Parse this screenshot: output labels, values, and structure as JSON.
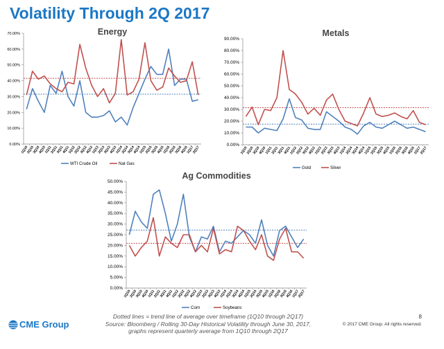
{
  "page": {
    "title": "Volatility Through 2Q 2017",
    "footer_lines": [
      "Dotted lines = trend line of average over timeframe (1Q10 through 2Q17)",
      "Source:  Bloomberg / Rolling 30-Day Historical Volatility through June 30, 2017,",
      "graphs represent quarterly average from 1Q10 through 2Q17"
    ],
    "page_number": "8",
    "copyright": "© 2017 CME Group. All rights reserved.",
    "logo_text": "CME Group",
    "colors": {
      "title": "#1b77c5",
      "blue": "#4f81bd",
      "red": "#c0504d"
    }
  },
  "chart_data": [
    {
      "id": "energy",
      "type": "line",
      "title": "Energy",
      "ylim": [
        0,
        70
      ],
      "yticks": [
        0,
        10,
        20,
        30,
        40,
        50,
        60,
        70
      ],
      "ytick_labels": [
        "0.00%",
        "10.00%",
        "20.00%",
        "30.00%",
        "40.00%",
        "50.00%",
        "60.00%",
        "70.00%"
      ],
      "categories": [
        "1Q10",
        "2Q10",
        "3Q10",
        "4Q10",
        "1Q11",
        "2Q11",
        "3Q11",
        "4Q11",
        "1Q12",
        "2Q12",
        "3Q12",
        "4Q12",
        "1Q13",
        "2Q13",
        "3Q13",
        "4Q13",
        "1Q14",
        "2Q14",
        "3Q14",
        "4Q14",
        "1Q15",
        "2Q15",
        "3Q15",
        "4Q15",
        "1Q16",
        "2Q16",
        "3Q16",
        "4Q16",
        "1Q17",
        "2Q17"
      ],
      "series": [
        {
          "name": "WTI Crude Oil",
          "color": "#4f81bd",
          "values": [
            22,
            35,
            27,
            20,
            37,
            32,
            46,
            30,
            24,
            40,
            20,
            17,
            17,
            18,
            21,
            14,
            17,
            12,
            23,
            32,
            41,
            49,
            44,
            44,
            60,
            37,
            41,
            41,
            27,
            28
          ],
          "trend": 31.5
        },
        {
          "name": "Nat Gas",
          "color": "#c0504d",
          "values": [
            31,
            46,
            41,
            43,
            38,
            35,
            33,
            39,
            38,
            63,
            48,
            37,
            30,
            35,
            26,
            32,
            66,
            31,
            33,
            41,
            64,
            40,
            34,
            36,
            48,
            43,
            39,
            40,
            52,
            31
          ],
          "trend": 41.5
        }
      ]
    },
    {
      "id": "metals",
      "type": "line",
      "title": "Metals",
      "ylim": [
        0,
        90
      ],
      "yticks": [
        0,
        10,
        20,
        30,
        40,
        50,
        60,
        70,
        80,
        90
      ],
      "ytick_labels": [
        "0.00%",
        "10.00%",
        "20.00%",
        "30.00%",
        "40.00%",
        "50.00%",
        "60.00%",
        "70.00%",
        "80.00%",
        "90.00%"
      ],
      "categories": [
        "1Q10",
        "2Q10",
        "3Q10",
        "4Q10",
        "1Q11",
        "2Q11",
        "3Q11",
        "4Q11",
        "1Q12",
        "2Q12",
        "3Q12",
        "4Q12",
        "1Q13",
        "2Q13",
        "3Q13",
        "4Q13",
        "1Q14",
        "2Q14",
        "3Q14",
        "4Q14",
        "1Q15",
        "2Q15",
        "3Q15",
        "4Q15",
        "1Q16",
        "2Q16",
        "3Q16",
        "4Q16",
        "1Q17",
        "2Q17"
      ],
      "series": [
        {
          "name": "Gold",
          "color": "#4f81bd",
          "values": [
            15,
            15,
            10,
            14,
            13,
            12,
            22,
            39,
            23,
            21,
            14,
            13,
            13,
            28,
            24,
            20,
            15,
            13,
            9,
            16,
            19,
            15,
            14,
            17,
            20,
            17,
            14,
            15,
            13,
            11
          ],
          "trend": 17.5
        },
        {
          "name": "Silver",
          "color": "#c0504d",
          "values": [
            24,
            32,
            17,
            30,
            29,
            40,
            80,
            47,
            43,
            36,
            26,
            31,
            25,
            38,
            43,
            30,
            20,
            18,
            16,
            27,
            40,
            26,
            24,
            25,
            27,
            24,
            22,
            29,
            19,
            17
          ],
          "trend": 31.5
        }
      ]
    },
    {
      "id": "ag",
      "type": "line",
      "title": "Ag Commodities",
      "ylim": [
        0,
        50
      ],
      "yticks": [
        0,
        5,
        10,
        15,
        20,
        25,
        30,
        35,
        40,
        45,
        50
      ],
      "ytick_labels": [
        "0.00%",
        "5.00%",
        "10.00%",
        "15.00%",
        "20.00%",
        "25.00%",
        "30.00%",
        "35.00%",
        "40.00%",
        "45.00%",
        "50.00%"
      ],
      "categories": [
        "1Q10",
        "2Q10",
        "3Q10",
        "4Q10",
        "1Q11",
        "2Q11",
        "3Q11",
        "4Q11",
        "1Q12",
        "2Q12",
        "3Q12",
        "4Q12",
        "1Q13",
        "2Q13",
        "3Q13",
        "4Q13",
        "1Q14",
        "2Q14",
        "3Q14",
        "4Q14",
        "1Q15",
        "2Q15",
        "3Q15",
        "4Q15",
        "1Q16",
        "2Q16",
        "3Q16",
        "4Q16",
        "1Q17",
        "2Q17"
      ],
      "series": [
        {
          "name": "Corn",
          "color": "#4f81bd",
          "values": [
            25,
            36,
            31,
            28,
            44,
            46,
            35,
            22,
            30,
            44,
            24,
            17,
            24,
            23,
            29,
            17,
            22,
            21,
            24,
            27,
            25,
            21,
            32,
            20,
            15,
            27,
            29,
            24,
            19,
            23
          ],
          "trend": 27.2
        },
        {
          "name": "Soybeans",
          "color": "#c0504d",
          "values": [
            20,
            15,
            19,
            22,
            33,
            15,
            24,
            21,
            19,
            25,
            25,
            17,
            20,
            17,
            28,
            16,
            18,
            17,
            29,
            27,
            22,
            18,
            25,
            15,
            13,
            23,
            28,
            17,
            17,
            14
          ],
          "trend": 21
        }
      ]
    }
  ]
}
